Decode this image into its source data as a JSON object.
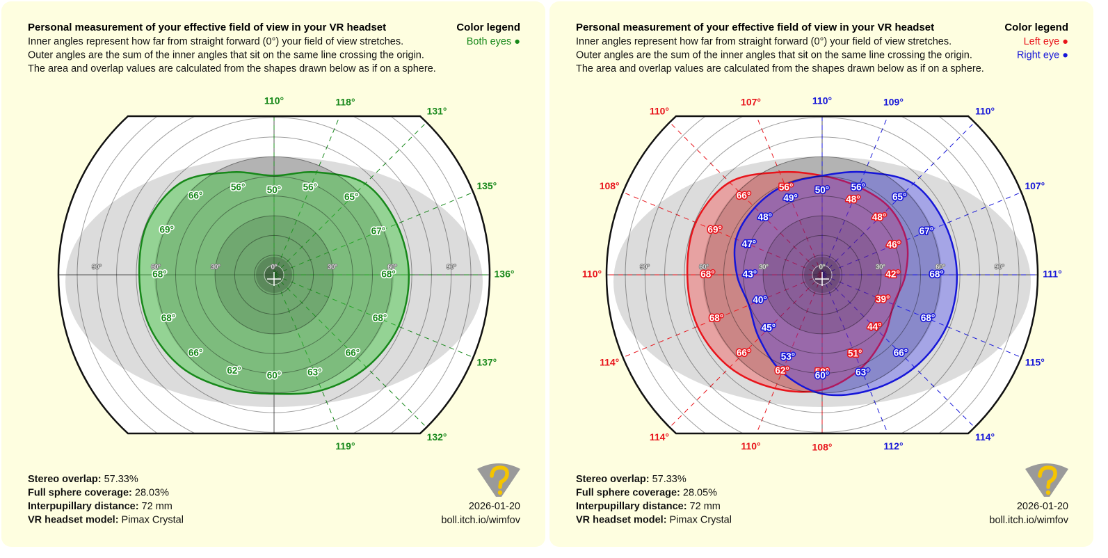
{
  "panels": [
    {
      "title": "Personal measurement of your effective field of view in your VR headset",
      "description": [
        "Inner angles represent how far from straight forward (0°) your field of view stretches.",
        "Outer angles are the sum of the inner angles that sit on the same line crossing the origin.",
        "The area and overlap values are calculated from the shapes drawn below as if on a sphere."
      ],
      "legend": {
        "title": "Color legend",
        "items": [
          {
            "label": "Both eyes ●",
            "color": "#17881a"
          }
        ]
      },
      "ring_labels": [
        "90°",
        "60°",
        "30°",
        "0°",
        "30°",
        "60°",
        "90°"
      ],
      "shapes": [
        {
          "color": "#17881a",
          "fill": "rgba(60,200,60,0.45)",
          "inner_angles": [
            "50°",
            "56°",
            "65°",
            "67°",
            "68°",
            "68°",
            "66°",
            "63°",
            "60°",
            "62°",
            "66°",
            "68°",
            "68°",
            "69°",
            "66°",
            "56°"
          ],
          "outer_angles": [
            "110°",
            "118°",
            "131°",
            "135°",
            "136°",
            "137°",
            "132°",
            "119°"
          ]
        }
      ],
      "stats": [
        {
          "label": "Stereo overlap:",
          "value": "57.33%"
        },
        {
          "label": "Full sphere coverage:",
          "value": "28.03%"
        },
        {
          "label": "Interpupillary distance:",
          "value": "72 mm"
        },
        {
          "label": "VR headset model:",
          "value": "Pimax Crystal"
        }
      ],
      "date": "2026-01-20",
      "url": "boll.itch.io/wimfov"
    },
    {
      "title": "Personal measurement of your effective field of view in your VR headset",
      "description": [
        "Inner angles represent how far from straight forward (0°) your field of view stretches.",
        "Outer angles are the sum of the inner angles that sit on the same line crossing the origin.",
        "The area and overlap values are calculated from the shapes drawn below as if on a sphere."
      ],
      "legend": {
        "title": "Color legend",
        "items": [
          {
            "label": "Left eye ●",
            "color": "#e8141b"
          },
          {
            "label": "Right eye ●",
            "color": "#1616d8"
          }
        ]
      },
      "ring_labels": [
        "90°",
        "60°",
        "30°",
        "0°",
        "30°",
        "60°",
        "90°"
      ],
      "shapes": [
        {
          "color": "#e8141b",
          "fill": "rgba(255,40,40,0.32)",
          "inner_angles": [
            "50°",
            "48°",
            "48°",
            "46°",
            "42°",
            "39°",
            "44°",
            "51°",
            "58°",
            "62°",
            "66°",
            "68°",
            "68°",
            "69°",
            "66°",
            "56°"
          ],
          "outer_angles": [
            "107°",
            "110°",
            "108°",
            "110°",
            "114°",
            "114°",
            "110°",
            "108°"
          ]
        },
        {
          "color": "#1616d8",
          "fill": "rgba(40,40,255,0.30)",
          "inner_angles": [
            "50°",
            "56°",
            "65°",
            "67°",
            "68°",
            "68°",
            "66°",
            "63°",
            "60°",
            "53°",
            "45°",
            "40°",
            "43°",
            "47°",
            "48°",
            "49°"
          ],
          "outer_angles": [
            "110°",
            "109°",
            "110°",
            "107°",
            "111°",
            "115°",
            "114°",
            "112°"
          ]
        }
      ],
      "stats": [
        {
          "label": "Stereo overlap:",
          "value": "57.33%"
        },
        {
          "label": "Full sphere coverage:",
          "value": "28.05%"
        },
        {
          "label": "Interpupillary distance:",
          "value": "72 mm"
        },
        {
          "label": "VR headset model:",
          "value": "Pimax Crystal"
        }
      ],
      "date": "2026-01-20",
      "url": "boll.itch.io/wimfov"
    }
  ]
}
